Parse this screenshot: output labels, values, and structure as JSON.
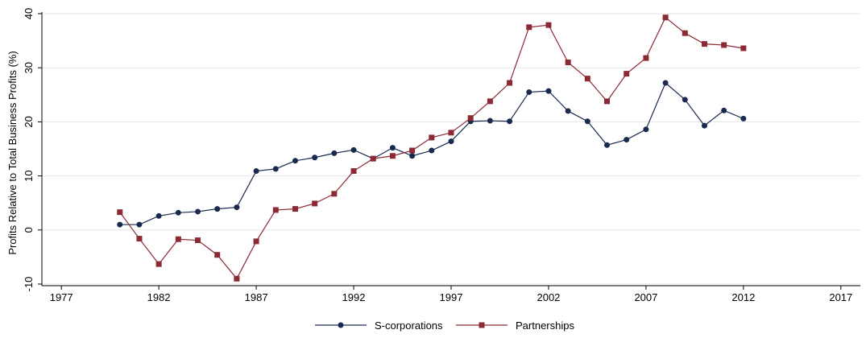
{
  "chart_data": {
    "type": "line",
    "y_label": "Profits Relative to Total Business Profits (%)",
    "x": [
      1980,
      1981,
      1982,
      1983,
      1984,
      1985,
      1986,
      1987,
      1988,
      1989,
      1990,
      1991,
      1992,
      1993,
      1994,
      1995,
      1996,
      1997,
      1998,
      1999,
      2000,
      2001,
      2002,
      2003,
      2004,
      2005,
      2006,
      2007,
      2008,
      2009,
      2010,
      2011,
      2012
    ],
    "series": [
      {
        "name": "S-corporations",
        "color": "#1a2a4f",
        "marker": "circle",
        "values": [
          1.0,
          1.0,
          2.6,
          3.2,
          3.4,
          3.9,
          4.2,
          10.9,
          11.3,
          12.8,
          13.4,
          14.2,
          14.8,
          13.2,
          15.2,
          13.7,
          14.7,
          16.4,
          20.1,
          20.2,
          20.1,
          25.5,
          25.7,
          22.0,
          20.1,
          15.7,
          16.7,
          18.6,
          27.2,
          24.1,
          19.3,
          22.1,
          20.6
        ]
      },
      {
        "name": "Partnerships",
        "color": "#8b2a35",
        "marker": "square",
        "values": [
          3.3,
          -1.6,
          -6.3,
          -1.7,
          -1.9,
          -4.6,
          -9.0,
          -2.1,
          3.7,
          3.9,
          4.9,
          6.7,
          10.9,
          13.2,
          13.7,
          14.7,
          17.1,
          18.0,
          20.7,
          23.8,
          27.2,
          37.5,
          37.9,
          31.0,
          28.0,
          23.8,
          28.9,
          31.8,
          39.3,
          36.4,
          34.4,
          34.2,
          33.6
        ]
      }
    ],
    "xlim": [
      1976,
      2018
    ],
    "xticks": [
      1977,
      1982,
      1987,
      1992,
      1997,
      2002,
      2007,
      2012,
      2017
    ],
    "ylim": [
      -10,
      40
    ],
    "yticks": [
      -10,
      0,
      10,
      20,
      30,
      40
    ],
    "grid": true
  }
}
